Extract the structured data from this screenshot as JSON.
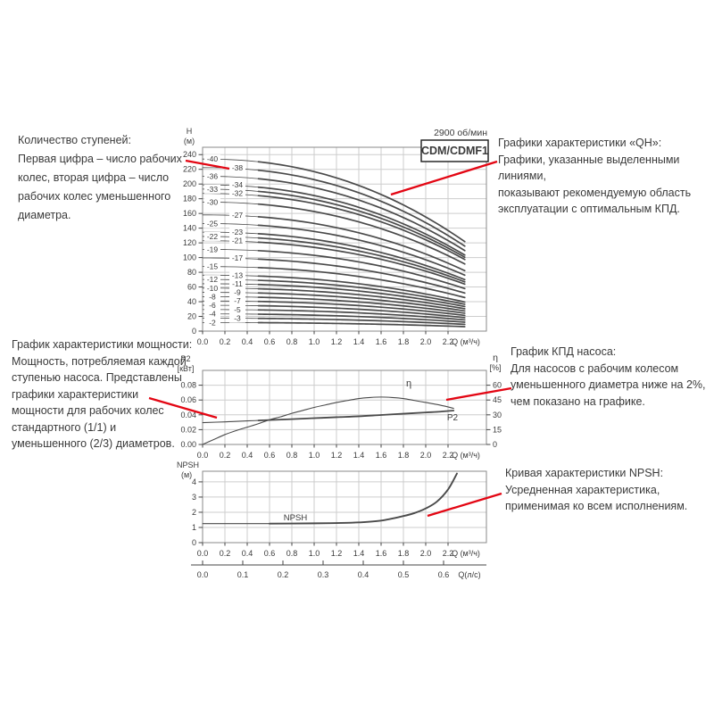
{
  "colors": {
    "text": "#3a3a3a",
    "axis": "#444444",
    "frame": "#8a8a8a",
    "grid": "#cdcdcd",
    "curve": "#4a4a4a",
    "callout": "#e30613",
    "background": "#ffffff",
    "box_border": "#1a1a1a"
  },
  "annotations": {
    "stage_count": {
      "lines": [
        "Количество ступеней:",
        "Первая цифра – число рабочих",
        "колес, вторая цифра – число",
        "рабочих колес уменьшенного",
        "диаметра."
      ]
    },
    "qh": {
      "lines": [
        "Графики характеристики «QH»:",
        "Графики, указанные выделенными линиями,",
        "показывают рекомендуемую область",
        "эксплуатации с оптимальным КПД."
      ]
    },
    "power": {
      "lines": [
        "График характеристики мощности:",
        "Мощность, потребляемая каждой",
        "ступенью насоса. Представлены",
        "графики характеристики",
        "мощности для рабочих колес",
        "стандартного (1/1) и",
        "уменьшенного (2/3) диаметров."
      ]
    },
    "efficiency": {
      "lines": [
        "График КПД насоса:",
        "Для насосов с рабочим колесом",
        "уменьшенного диаметра ниже на 2%,",
        "чем показано на графике."
      ]
    },
    "npsh": {
      "lines": [
        "Кривая характеристики NPSH:",
        "Усредненная характеристика,",
        "применимая ко всем исполнениям."
      ]
    }
  },
  "chart_data": [
    {
      "id": "qh",
      "type": "line",
      "title": "CDM/CDMF1",
      "speed": "2900 об/мин",
      "xlabel": "Q (м³/ч)",
      "ylabel_lines": [
        "H",
        "(м)"
      ],
      "xlim": [
        0,
        2.54
      ],
      "ylim": [
        0,
        250
      ],
      "xticks": [
        "0.0",
        "0.2",
        "0.4",
        "0.6",
        "0.8",
        "1.0",
        "1.2",
        "1.4",
        "1.6",
        "1.8",
        "2.0",
        "2.2"
      ],
      "yticks": [
        0,
        20,
        40,
        60,
        80,
        100,
        120,
        140,
        160,
        180,
        200,
        220,
        240
      ],
      "grid": true,
      "curve_model": {
        "qmax": 2.35,
        "droop": 0.48,
        "exp": 2.2,
        "bold_from": 0.5,
        "head_per_stage": 5.85
      },
      "curves": [
        {
          "label": "-40",
          "stages": 40,
          "h0": 234.0,
          "col": "A"
        },
        {
          "label": "-38",
          "stages": 38,
          "h0": 222.3,
          "col": "B"
        },
        {
          "label": "-36",
          "stages": 36,
          "h0": 210.6,
          "col": "A"
        },
        {
          "label": "-34",
          "stages": 34,
          "h0": 198.9,
          "col": "B"
        },
        {
          "label": "-33",
          "stages": 33,
          "h0": 193.1,
          "col": "A"
        },
        {
          "label": "-32",
          "stages": 32,
          "h0": 187.2,
          "col": "B"
        },
        {
          "label": "-30",
          "stages": 30,
          "h0": 175.5,
          "col": "A"
        },
        {
          "label": "-27",
          "stages": 27,
          "h0": 158.0,
          "col": "B"
        },
        {
          "label": "-25",
          "stages": 25,
          "h0": 146.3,
          "col": "A"
        },
        {
          "label": "-23",
          "stages": 23,
          "h0": 134.6,
          "col": "B"
        },
        {
          "label": "-22",
          "stages": 22,
          "h0": 128.7,
          "col": "A"
        },
        {
          "label": "-21",
          "stages": 21,
          "h0": 122.9,
          "col": "B"
        },
        {
          "label": "-19",
          "stages": 19,
          "h0": 111.2,
          "col": "A"
        },
        {
          "label": "-17",
          "stages": 17,
          "h0": 99.5,
          "col": "B"
        },
        {
          "label": "-15",
          "stages": 15,
          "h0": 87.8,
          "col": "A"
        },
        {
          "label": "-13",
          "stages": 13,
          "h0": 76.1,
          "col": "B"
        },
        {
          "label": "-12",
          "stages": 12,
          "h0": 70.2,
          "col": "A"
        },
        {
          "label": "-11",
          "stages": 11,
          "h0": 64.4,
          "col": "B"
        },
        {
          "label": "-10",
          "stages": 10,
          "h0": 58.5,
          "col": "A"
        },
        {
          "label": "-9",
          "stages": 9,
          "h0": 52.7,
          "col": "B"
        },
        {
          "label": "-8",
          "stages": 8,
          "h0": 46.8,
          "col": "A"
        },
        {
          "label": "-7",
          "stages": 7,
          "h0": 41.0,
          "col": "B"
        },
        {
          "label": "-6",
          "stages": 6,
          "h0": 35.1,
          "col": "A"
        },
        {
          "label": "-5",
          "stages": 5,
          "h0": 29.3,
          "col": "B"
        },
        {
          "label": "-4",
          "stages": 4,
          "h0": 23.4,
          "col": "A"
        },
        {
          "label": "-3",
          "stages": 3,
          "h0": 17.6,
          "col": "B"
        },
        {
          "label": "-2",
          "stages": 2,
          "h0": 11.7,
          "col": "A"
        }
      ]
    },
    {
      "id": "power_efficiency",
      "type": "line",
      "xlabel": "Q (м³/ч)",
      "xticks": [
        "0.0",
        "0.2",
        "0.4",
        "0.6",
        "0.8",
        "1.0",
        "1.2",
        "1.4",
        "1.6",
        "1.8",
        "2.0",
        "2.2"
      ],
      "left_axis": {
        "label_lines": [
          "P2",
          "[кВт]"
        ],
        "ticks": [
          "0.00",
          "0.02",
          "0.04",
          "0.06",
          "0.08"
        ],
        "lim": [
          0,
          0.1
        ]
      },
      "right_axis": {
        "label_lines": [
          "η",
          "[%]"
        ],
        "ticks": [
          0,
          15,
          30,
          45,
          60
        ],
        "lim": [
          0,
          75
        ]
      },
      "series": [
        {
          "name": "η",
          "axis": "right",
          "points": [
            [
              0,
              0
            ],
            [
              0.1,
              5
            ],
            [
              0.2,
              10
            ],
            [
              0.3,
              14
            ],
            [
              0.4,
              17.5
            ],
            [
              0.5,
              21
            ],
            [
              0.6,
              25
            ],
            [
              0.7,
              28
            ],
            [
              0.8,
              31.5
            ],
            [
              0.9,
              34.5
            ],
            [
              1.0,
              37.5
            ],
            [
              1.1,
              40
            ],
            [
              1.2,
              42.5
            ],
            [
              1.3,
              44.5
            ],
            [
              1.4,
              46.5
            ],
            [
              1.5,
              47.5
            ],
            [
              1.6,
              48
            ],
            [
              1.7,
              47.5
            ],
            [
              1.8,
              46.5
            ],
            [
              1.9,
              44.5
            ],
            [
              2.0,
              42.5
            ],
            [
              2.1,
              40.5
            ],
            [
              2.2,
              38
            ],
            [
              2.25,
              36.5
            ]
          ]
        },
        {
          "name": "P2",
          "axis": "left",
          "bold_from": 0.5,
          "points": [
            [
              0,
              0.0295
            ],
            [
              0.2,
              0.0305
            ],
            [
              0.4,
              0.0318
            ],
            [
              0.5,
              0.0324
            ],
            [
              0.6,
              0.033
            ],
            [
              0.8,
              0.0342
            ],
            [
              1.0,
              0.0355
            ],
            [
              1.2,
              0.0368
            ],
            [
              1.4,
              0.038
            ],
            [
              1.6,
              0.0398
            ],
            [
              1.8,
              0.0415
            ],
            [
              2.0,
              0.0432
            ],
            [
              2.1,
              0.044
            ],
            [
              2.2,
              0.0452
            ],
            [
              2.25,
              0.0458
            ]
          ]
        }
      ]
    },
    {
      "id": "npsh",
      "type": "line",
      "xlabel": "Q (м³/ч)",
      "xticks": [
        "0.0",
        "0.2",
        "0.4",
        "0.6",
        "0.8",
        "1.0",
        "1.2",
        "1.4",
        "1.6",
        "1.8",
        "2.0",
        "2.2"
      ],
      "ylabel_lines": [
        "NPSH",
        "(м)"
      ],
      "yticks": [
        0,
        1,
        2,
        3,
        4
      ],
      "ylim": [
        0,
        4.7
      ],
      "series": [
        {
          "name": "NPSH",
          "bold_from": 0.6,
          "points": [
            [
              0,
              1.25
            ],
            [
              0.3,
              1.25
            ],
            [
              0.6,
              1.25
            ],
            [
              1.0,
              1.27
            ],
            [
              1.2,
              1.29
            ],
            [
              1.4,
              1.33
            ],
            [
              1.6,
              1.45
            ],
            [
              1.8,
              1.75
            ],
            [
              1.9,
              1.95
            ],
            [
              2.0,
              2.25
            ],
            [
              2.1,
              2.7
            ],
            [
              2.2,
              3.5
            ],
            [
              2.28,
              4.55
            ]
          ]
        }
      ],
      "second_axis": {
        "label": "Q(л/с)",
        "ticks": [
          "0.0",
          "0.1",
          "0.2",
          "0.3",
          "0.4",
          "0.5",
          "0.6"
        ]
      }
    }
  ]
}
